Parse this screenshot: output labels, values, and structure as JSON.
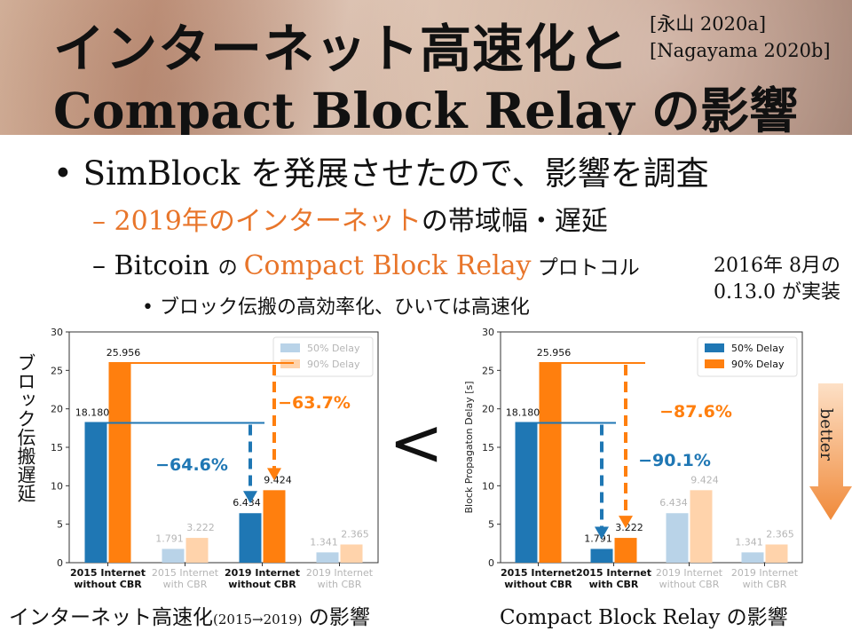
{
  "header": {
    "title_line1": "インターネット高速化と",
    "title_line2": "Compact Block Relay の影響",
    "ref1": "[永山 2020a]",
    "ref2": "[Nagayama 2020b]"
  },
  "bullets": {
    "l1": "SimBlock を発展させたので、影響を調査",
    "l2a_orange": "2019年のインターネット",
    "l2a_rest": "の帯域幅・遅延",
    "l2b_pre": "Bitcoin ",
    "l2b_no": "の ",
    "l2b_orange": "Compact Block Relay",
    "l2b_rest": " プロトコル",
    "l3": "ブロック伝搬の高効率化、ひいては高速化",
    "note1": "2016年 8月の",
    "note2": "0.13.0 が実装"
  },
  "symbols": {
    "less_than": "<",
    "better": "better"
  },
  "captions": {
    "left_a": "インターネット高速化",
    "left_b": "(2015→2019)",
    "left_c": " の影響",
    "right_a": "Compact Block Relay",
    "right_c": " の影響"
  },
  "y_label_left": "ブロック伝搬遅延",
  "colors": {
    "blue": "#1f77b4",
    "orange": "#ff7f0e",
    "blue_faded": "#b9d3e8",
    "orange_faded": "#ffd3ab"
  },
  "chart_data": [
    {
      "type": "bar",
      "categories": [
        "2015 Internet\nwithout CBR",
        "2015 Internet\nwith CBR",
        "2019 Internet\nwithout CBR",
        "2019 Internet\nwith CBR"
      ],
      "series": [
        {
          "name": "50% Delay",
          "values": [
            18.18,
            1.791,
            6.434,
            1.341
          ]
        },
        {
          "name": "90% Delay",
          "values": [
            25.956,
            3.222,
            9.424,
            2.365
          ]
        }
      ],
      "highlight": [
        true,
        false,
        true,
        false
      ],
      "legend_faded": true,
      "ylabel": "",
      "ylim": [
        0,
        30
      ],
      "yticks": [
        0,
        5,
        10,
        15,
        20,
        25,
        30
      ],
      "legend": "top-right",
      "annotations": [
        {
          "text": "−64.6%",
          "series": "50% Delay"
        },
        {
          "text": "−63.7%",
          "series": "90% Delay"
        }
      ],
      "arrow_to": 2
    },
    {
      "type": "bar",
      "categories": [
        "2015 Internet\nwithout CBR",
        "2015 Internet\nwith CBR",
        "2019 Internet\nwithout CBR",
        "2019 Internet\nwith CBR"
      ],
      "series": [
        {
          "name": "50% Delay",
          "values": [
            18.18,
            1.791,
            6.434,
            1.341
          ]
        },
        {
          "name": "90% Delay",
          "values": [
            25.956,
            3.222,
            9.424,
            2.365
          ]
        }
      ],
      "highlight": [
        true,
        true,
        false,
        false
      ],
      "legend_faded": false,
      "ylabel": "Block Propagaton Delay [s]",
      "ylim": [
        0,
        30
      ],
      "yticks": [
        0,
        5,
        10,
        15,
        20,
        25,
        30
      ],
      "legend": "top-right",
      "annotations": [
        {
          "text": "−90.1%",
          "series": "50% Delay"
        },
        {
          "text": "−87.6%",
          "series": "90% Delay"
        }
      ],
      "arrow_to": 1
    }
  ]
}
